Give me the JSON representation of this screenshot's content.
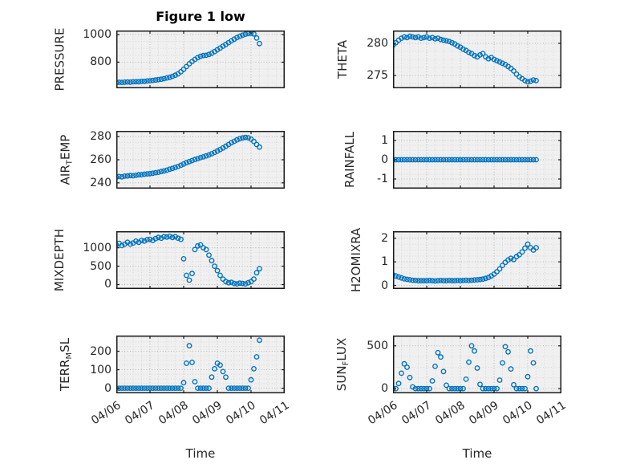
{
  "chart_data": {
    "type": "scatter",
    "title": "Figure 1 low",
    "xlabel": "Time",
    "marker": "o",
    "marker_color": "#0072BD",
    "grid": "major and minor, dotted",
    "xlim": [
      0,
      5
    ],
    "xtick_values": [
      0,
      1,
      2,
      3,
      4,
      5
    ],
    "xtick_labels": [
      "04/06",
      "04/07",
      "04/08",
      "04/09",
      "04/10",
      "04/11"
    ],
    "x_unit": "days since 04/06",
    "x": [
      0,
      0.083,
      0.167,
      0.25,
      0.333,
      0.417,
      0.5,
      0.583,
      0.667,
      0.75,
      0.833,
      0.917,
      1,
      1.083,
      1.167,
      1.25,
      1.333,
      1.417,
      1.5,
      1.583,
      1.667,
      1.75,
      1.833,
      1.917,
      2,
      2.083,
      2.167,
      2.25,
      2.333,
      2.417,
      2.5,
      2.583,
      2.667,
      2.75,
      2.833,
      2.917,
      3,
      3.083,
      3.167,
      3.25,
      3.333,
      3.417,
      3.5,
      3.583,
      3.667,
      3.75,
      3.833,
      3.917,
      4,
      4.083,
      4.167,
      4.25
    ],
    "subplots": [
      {
        "id": "pressure",
        "ylabel": "PRESSURE",
        "ylabel_parts": [
          {
            "t": "PRESSURE"
          }
        ],
        "yticks": [
          800,
          1000
        ],
        "ylim": [
          610,
          1030
        ],
        "values": [
          652,
          654,
          653,
          655,
          656,
          655,
          657,
          658,
          658,
          660,
          661,
          663,
          665,
          668,
          670,
          673,
          676,
          680,
          685,
          690,
          697,
          705,
          715,
          730,
          748,
          768,
          788,
          805,
          820,
          833,
          843,
          848,
          850,
          856,
          865,
          877,
          890,
          903,
          916,
          929,
          942,
          955,
          967,
          978,
          988,
          996,
          1003,
          1008,
          1010,
          1005,
          975,
          935
        ]
      },
      {
        "id": "theta",
        "ylabel": "THETA",
        "ylabel_parts": [
          {
            "t": "THETA"
          }
        ],
        "yticks": [
          275,
          280
        ],
        "ylim": [
          273,
          282
        ],
        "values": [
          279.7,
          280.1,
          280.5,
          280.8,
          281,
          280.9,
          281.1,
          281,
          280.9,
          281,
          280.8,
          280.9,
          281,
          280.8,
          280.9,
          280.7,
          280.8,
          280.6,
          280.5,
          280.4,
          280.3,
          280.1,
          279.9,
          279.6,
          279.4,
          279.1,
          278.9,
          278.6,
          278.4,
          278.1,
          277.9,
          278.2,
          278.4,
          277.9,
          277.6,
          277.8,
          277.5,
          277.3,
          277.1,
          276.9,
          276.7,
          276.4,
          276.1,
          275.7,
          275.2,
          274.8,
          274.5,
          274.2,
          274,
          274.1,
          274.3,
          274.2
        ]
      },
      {
        "id": "air-temp",
        "ylabel": "AIR_TEMP",
        "ylabel_parts": [
          {
            "t": "AIR"
          },
          {
            "t": "T",
            "sub": true
          },
          {
            "t": "EMP"
          }
        ],
        "yticks": [
          240,
          260,
          280
        ],
        "ylim": [
          235,
          285
        ],
        "values": [
          245,
          245.5,
          245.2,
          245.8,
          246,
          246.3,
          246.1,
          246.5,
          247,
          247.1,
          247.5,
          247.8,
          248,
          248.3,
          248.8,
          249.2,
          249.8,
          250.3,
          251,
          251.8,
          252.5,
          253.3,
          254.2,
          255.2,
          256.3,
          257.4,
          258.4,
          259.3,
          260.2,
          261,
          261.8,
          262.5,
          263.3,
          264.2,
          265.2,
          266.3,
          267.5,
          268.8,
          270.2,
          271.7,
          273.2,
          274.7,
          276,
          277.2,
          278.2,
          278.9,
          279.3,
          279,
          277.8,
          275.8,
          273.2,
          271
        ]
      },
      {
        "id": "rainfall",
        "ylabel": "RAINFALL",
        "ylabel_parts": [
          {
            "t": "RAINFALL"
          }
        ],
        "yticks": [
          -1,
          0,
          1
        ],
        "ylim": [
          -1.5,
          1.5
        ],
        "values": [
          0,
          0,
          0,
          0,
          0,
          0,
          0,
          0,
          0,
          0,
          0,
          0,
          0,
          0,
          0,
          0,
          0,
          0,
          0,
          0,
          0,
          0,
          0,
          0,
          0,
          0,
          0,
          0,
          0,
          0,
          0,
          0,
          0,
          0,
          0,
          0,
          0,
          0,
          0,
          0,
          0,
          0,
          0,
          0,
          0,
          0,
          0,
          0,
          0,
          0,
          0,
          0
        ]
      },
      {
        "id": "mixdepth",
        "ylabel": "MIXDEPTH",
        "ylabel_parts": [
          {
            "t": "MIXDEPTH"
          }
        ],
        "yticks": [
          0,
          500,
          1000
        ],
        "ylim": [
          -120,
          1450
        ],
        "values": [
          1080,
          1120,
          1060,
          1100,
          1150,
          1100,
          1130,
          1180,
          1150,
          1200,
          1180,
          1220,
          1230,
          1200,
          1250,
          1280,
          1260,
          1300,
          1290,
          1310,
          1280,
          1300,
          1260,
          1230,
          700,
          250,
          120,
          300,
          950,
          1050,
          1080,
          1000,
          950,
          800,
          650,
          500,
          380,
          250,
          150,
          80,
          50,
          60,
          30,
          20,
          40,
          30,
          20,
          50,
          80,
          150,
          320,
          430
        ]
      },
      {
        "id": "h2omixra",
        "ylabel": "H2OMIXRA",
        "ylabel_parts": [
          {
            "t": "H2OMIXRA"
          }
        ],
        "yticks": [
          0,
          1,
          2
        ],
        "ylim": [
          -0.15,
          2.3
        ],
        "values": [
          0.45,
          0.4,
          0.36,
          0.32,
          0.28,
          0.26,
          0.24,
          0.22,
          0.21,
          0.2,
          0.2,
          0.2,
          0.2,
          0.21,
          0.2,
          0.19,
          0.2,
          0.21,
          0.2,
          0.2,
          0.21,
          0.2,
          0.2,
          0.21,
          0.2,
          0.21,
          0.22,
          0.21,
          0.22,
          0.23,
          0.24,
          0.25,
          0.27,
          0.3,
          0.34,
          0.4,
          0.48,
          0.58,
          0.7,
          0.85,
          0.98,
          1.08,
          1.15,
          1.1,
          1.22,
          1.3,
          1.42,
          1.58,
          1.75,
          1.6,
          1.5,
          1.6
        ]
      },
      {
        "id": "terr-msl",
        "ylabel": "TERR_MSL",
        "ylabel_parts": [
          {
            "t": "TERR"
          },
          {
            "t": "M",
            "sub": true
          },
          {
            "t": "SL"
          }
        ],
        "yticks": [
          0,
          100,
          200
        ],
        "ylim": [
          -28,
          285
        ],
        "values": [
          0,
          0,
          0,
          0,
          0,
          0,
          0,
          0,
          0,
          0,
          0,
          0,
          0,
          0,
          0,
          0,
          0,
          0,
          0,
          0,
          0,
          0,
          0,
          0,
          30,
          135,
          230,
          140,
          35,
          0,
          0,
          0,
          0,
          0,
          60,
          105,
          135,
          125,
          90,
          60,
          0,
          0,
          0,
          0,
          0,
          0,
          0,
          0,
          45,
          105,
          170,
          260
        ]
      },
      {
        "id": "sun-flux",
        "ylabel": "SUN_FLUX",
        "ylabel_parts": [
          {
            "t": "SUN"
          },
          {
            "t": "F",
            "sub": true
          },
          {
            "t": "LUX"
          }
        ],
        "yticks": [
          0,
          500
        ],
        "ylim": [
          -55,
          620
        ],
        "values": [
          0,
          0,
          60,
          180,
          290,
          250,
          130,
          20,
          0,
          0,
          0,
          0,
          0,
          0,
          90,
          260,
          420,
          370,
          200,
          40,
          0,
          0,
          0,
          0,
          0,
          0,
          110,
          310,
          500,
          440,
          240,
          50,
          0,
          0,
          0,
          0,
          0,
          0,
          100,
          300,
          490,
          430,
          230,
          45,
          0,
          0,
          0,
          0,
          140,
          440,
          300,
          0
        ]
      }
    ]
  }
}
